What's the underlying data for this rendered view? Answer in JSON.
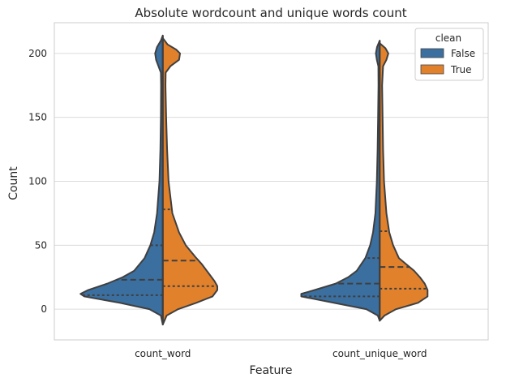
{
  "chart_data": {
    "type": "violin",
    "title": "Absolute wordcount and unique words count",
    "xlabel": "Feature",
    "ylabel": "Count",
    "categories": [
      "count_word",
      "count_unique_word"
    ],
    "ylim": [
      -24,
      224
    ],
    "yticks": [
      0,
      50,
      100,
      150,
      200
    ],
    "grid": true,
    "split": true,
    "inner": "quartile",
    "legend": {
      "title": "clean",
      "placement": "top-right",
      "entries": [
        "False",
        "True"
      ]
    },
    "series": [
      {
        "name": "False",
        "color": "#3a6fa0",
        "violins": [
          {
            "category": "count_word",
            "quartiles": [
              11,
              23,
              50
            ],
            "profile": [
              [
                -12,
                0
              ],
              [
                -5,
                0.02
              ],
              [
                0,
                0.14
              ],
              [
                5,
                0.45
              ],
              [
                10,
                0.82
              ],
              [
                12,
                0.86
              ],
              [
                15,
                0.78
              ],
              [
                20,
                0.58
              ],
              [
                25,
                0.42
              ],
              [
                30,
                0.3
              ],
              [
                40,
                0.19
              ],
              [
                50,
                0.13
              ],
              [
                60,
                0.09
              ],
              [
                75,
                0.06
              ],
              [
                100,
                0.035
              ],
              [
                125,
                0.025
              ],
              [
                150,
                0.02
              ],
              [
                175,
                0.018
              ],
              [
                185,
                0.02
              ],
              [
                190,
                0.045
              ],
              [
                195,
                0.07
              ],
              [
                200,
                0.08
              ],
              [
                205,
                0.06
              ],
              [
                210,
                0.02
              ],
              [
                214,
                0
              ]
            ]
          },
          {
            "category": "count_unique_word",
            "quartiles": [
              10,
              20,
              40
            ],
            "profile": [
              [
                -9,
                0
              ],
              [
                -5,
                0.02
              ],
              [
                0,
                0.14
              ],
              [
                5,
                0.48
              ],
              [
                10,
                0.82
              ],
              [
                12,
                0.82
              ],
              [
                15,
                0.68
              ],
              [
                20,
                0.46
              ],
              [
                25,
                0.33
              ],
              [
                30,
                0.24
              ],
              [
                40,
                0.15
              ],
              [
                50,
                0.1
              ],
              [
                60,
                0.07
              ],
              [
                75,
                0.045
              ],
              [
                100,
                0.03
              ],
              [
                125,
                0.022
              ],
              [
                150,
                0.017
              ],
              [
                175,
                0.013
              ],
              [
                190,
                0.014
              ],
              [
                195,
                0.03
              ],
              [
                200,
                0.04
              ],
              [
                205,
                0.028
              ],
              [
                210,
                0
              ]
            ]
          }
        ]
      },
      {
        "name": "True",
        "color": "#e1812c",
        "violins": [
          {
            "category": "count_word",
            "quartiles": [
              18,
              38,
              78
            ],
            "profile": [
              [
                -12,
                0
              ],
              [
                -5,
                0.04
              ],
              [
                0,
                0.16
              ],
              [
                5,
                0.35
              ],
              [
                10,
                0.52
              ],
              [
                15,
                0.57
              ],
              [
                18,
                0.57
              ],
              [
                22,
                0.54
              ],
              [
                28,
                0.48
              ],
              [
                35,
                0.41
              ],
              [
                40,
                0.35
              ],
              [
                50,
                0.24
              ],
              [
                60,
                0.17
              ],
              [
                75,
                0.1
              ],
              [
                100,
                0.06
              ],
              [
                125,
                0.045
              ],
              [
                150,
                0.035
              ],
              [
                175,
                0.028
              ],
              [
                185,
                0.03
              ],
              [
                190,
                0.08
              ],
              [
                195,
                0.17
              ],
              [
                200,
                0.18
              ],
              [
                203,
                0.14
              ],
              [
                207,
                0.05
              ],
              [
                212,
                0
              ]
            ]
          },
          {
            "category": "count_unique_word",
            "quartiles": [
              16,
              33,
              61
            ],
            "profile": [
              [
                -9,
                0
              ],
              [
                -5,
                0.05
              ],
              [
                0,
                0.17
              ],
              [
                5,
                0.4
              ],
              [
                10,
                0.5
              ],
              [
                15,
                0.5
              ],
              [
                20,
                0.47
              ],
              [
                25,
                0.42
              ],
              [
                30,
                0.36
              ],
              [
                35,
                0.28
              ],
              [
                40,
                0.2
              ],
              [
                50,
                0.14
              ],
              [
                60,
                0.1
              ],
              [
                75,
                0.07
              ],
              [
                100,
                0.045
              ],
              [
                125,
                0.035
              ],
              [
                150,
                0.03
              ],
              [
                175,
                0.025
              ],
              [
                190,
                0.035
              ],
              [
                195,
                0.07
              ],
              [
                200,
                0.09
              ],
              [
                204,
                0.06
              ],
              [
                208,
                0
              ]
            ]
          }
        ]
      }
    ]
  }
}
